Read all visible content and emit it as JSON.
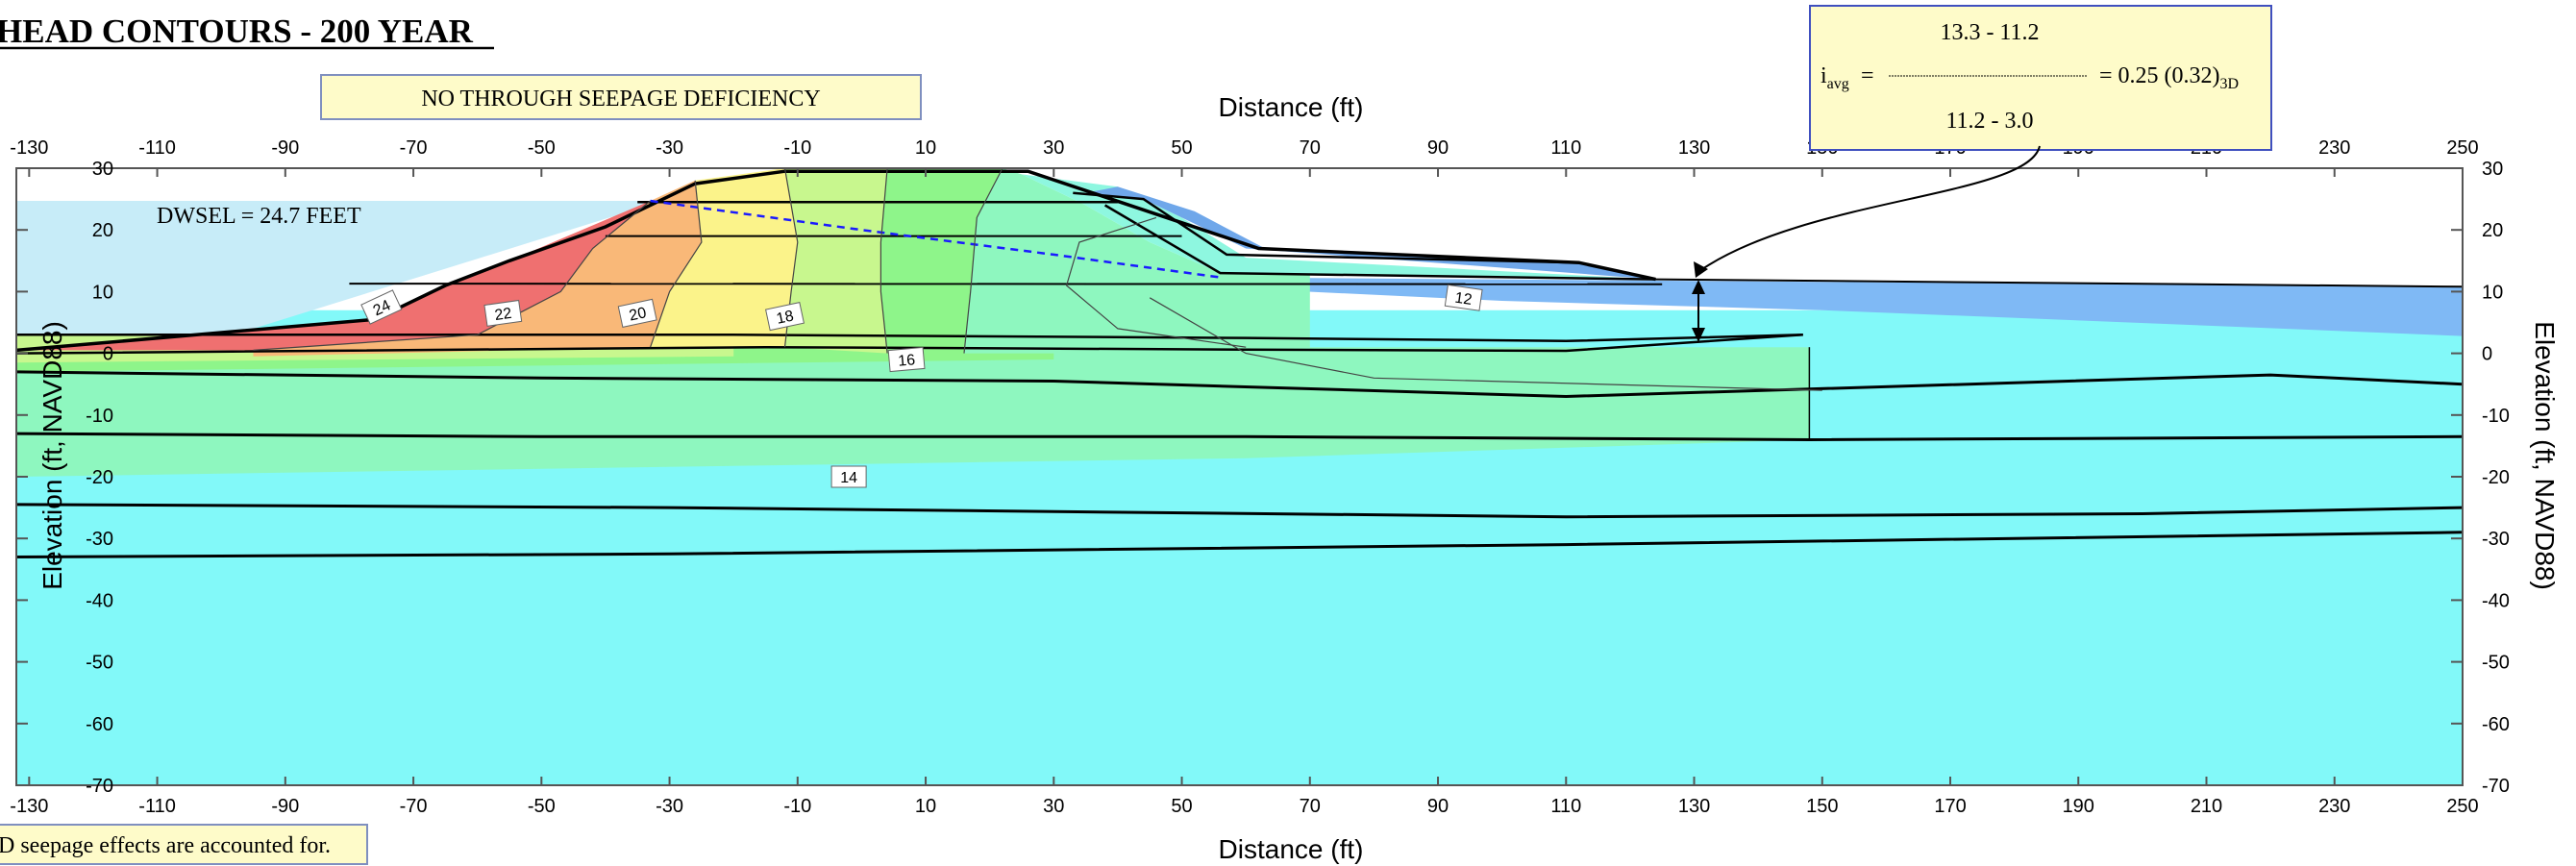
{
  "title": "HEAD CONTOURS - 200 YEAR",
  "deficiency_note": "NO THROUGH SEEPAGE DEFICIENCY",
  "footnote": "D seepage effects are accounted for.",
  "dwsel_label": "DWSEL = 24.7 FEET",
  "gradient_box": {
    "prefix": "i",
    "prefix_sub": "avg",
    "equals": "=",
    "numerator": "13.3 - 11.2",
    "denominator": "11.2 - 3.0",
    "result": "= 0.25 (0.32)",
    "result_sub": "3D"
  },
  "axes": {
    "x_label": "Distance (ft)",
    "y_label": "Elevation (ft, NAVD88)",
    "x_ticks": [
      -130,
      -110,
      -90,
      -70,
      -50,
      -30,
      -10,
      10,
      30,
      50,
      70,
      90,
      110,
      130,
      150,
      170,
      190,
      210,
      230,
      250
    ],
    "y_ticks": [
      30,
      20,
      10,
      0,
      -10,
      -20,
      -30,
      -40,
      -50,
      -60,
      -70
    ],
    "x_range": [
      -132,
      250
    ],
    "y_range": [
      -70,
      30
    ]
  },
  "contour_labels": [
    "24",
    "22",
    "20",
    "18",
    "16",
    "14",
    "12"
  ],
  "colors": {
    "head_24_up": "#ef7070",
    "head_22": "#f9b878",
    "head_20": "#fbf38a",
    "head_18": "#c8f78e",
    "head_16": "#8ef58a",
    "head_14": "#8ef7bf",
    "head_12": "#82f9f9",
    "water_reservoir": "#c7ecf8",
    "water_landside": "#7fb9f5",
    "levee_blue": "#6fa7ea",
    "phreatic_line": "#1a1aff",
    "note_fill": "#fefbc9"
  }
}
